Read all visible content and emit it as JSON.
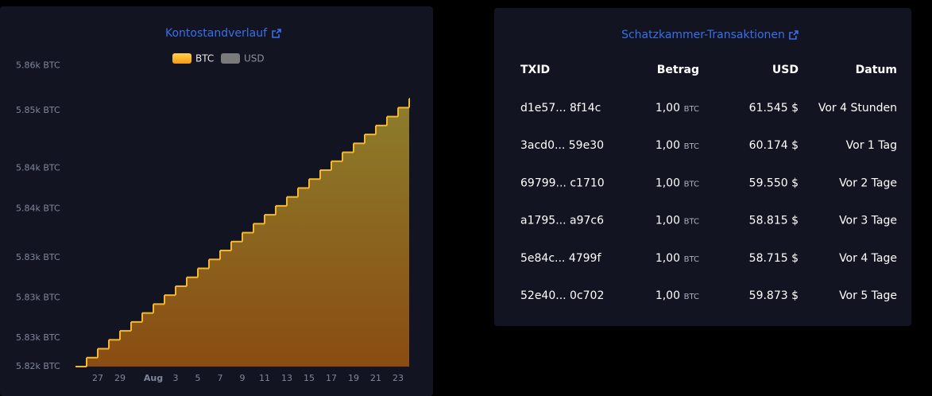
{
  "chart_data": {
    "type": "step-area",
    "title": "Kontostandverlauf",
    "legend": [
      "BTC",
      "USD"
    ],
    "legend_colors": [
      "#f5b82c",
      "#7a7a7a"
    ],
    "categories": [
      null,
      null,
      "27",
      null,
      "29",
      null,
      null,
      "Aug",
      null,
      "3",
      null,
      "5",
      null,
      "7",
      null,
      "9",
      null,
      "11",
      null,
      "13",
      null,
      "15",
      null,
      "17",
      null,
      "19",
      null,
      "21",
      null,
      "23",
      null
    ],
    "series": [
      {
        "name": "BTC",
        "color": "#f5b82c",
        "values": [
          5822.3,
          5823.3,
          5824.3,
          5825.3,
          5826.3,
          5827.3,
          5828.3,
          5829.3,
          5830.3,
          5831.3,
          5832.3,
          5833.3,
          5834.3,
          5835.3,
          5836.3,
          5837.3,
          5838.3,
          5839.3,
          5840.3,
          5841.3,
          5842.3,
          5843.3,
          5844.3,
          5845.3,
          5846.3,
          5847.3,
          5848.3,
          5849.3,
          5850.3,
          5851.3,
          5852.3
        ]
      }
    ],
    "ylim": [
      5822.3,
      5856.5
    ],
    "yticks": [
      {
        "value": 5856,
        "label": "5.86k BTC"
      },
      {
        "value": 5851,
        "label": "5.85k BTC"
      },
      {
        "value": 5844.5,
        "label": "5.84k BTC"
      },
      {
        "value": 5840,
        "label": "5.84k BTC"
      },
      {
        "value": 5834.5,
        "label": "5.83k BTC"
      },
      {
        "value": 5830,
        "label": "5.83k BTC"
      },
      {
        "value": 5825.5,
        "label": "5.83k BTC"
      },
      {
        "value": 5822.3,
        "label": "5.82k BTC"
      }
    ],
    "grid": false
  },
  "table": {
    "title": "Schatzkammer-Transaktionen",
    "headers": [
      "TXID",
      "Betrag",
      "USD",
      "Datum"
    ],
    "rows": [
      {
        "txid": "d1e57... 8f14c",
        "amount": "1,00",
        "unit": "BTC",
        "usd": "61.545 $",
        "date": "Vor 4 Stunden"
      },
      {
        "txid": "3acd0... 59e30",
        "amount": "1,00",
        "unit": "BTC",
        "usd": "60.174 $",
        "date": "Vor 1 Tag"
      },
      {
        "txid": "69799... c1710",
        "amount": "1,00",
        "unit": "BTC",
        "usd": "59.550 $",
        "date": "Vor 2 Tage"
      },
      {
        "txid": "a1795... a97c6",
        "amount": "1,00",
        "unit": "BTC",
        "usd": "58.815 $",
        "date": "Vor 3 Tage"
      },
      {
        "txid": "5e84c... 4799f",
        "amount": "1,00",
        "unit": "BTC",
        "usd": "58.715 $",
        "date": "Vor 4 Tage"
      },
      {
        "txid": "52e40... 0c702",
        "amount": "1,00",
        "unit": "BTC",
        "usd": "59.873 $",
        "date": "Vor 5 Tage"
      }
    ]
  }
}
